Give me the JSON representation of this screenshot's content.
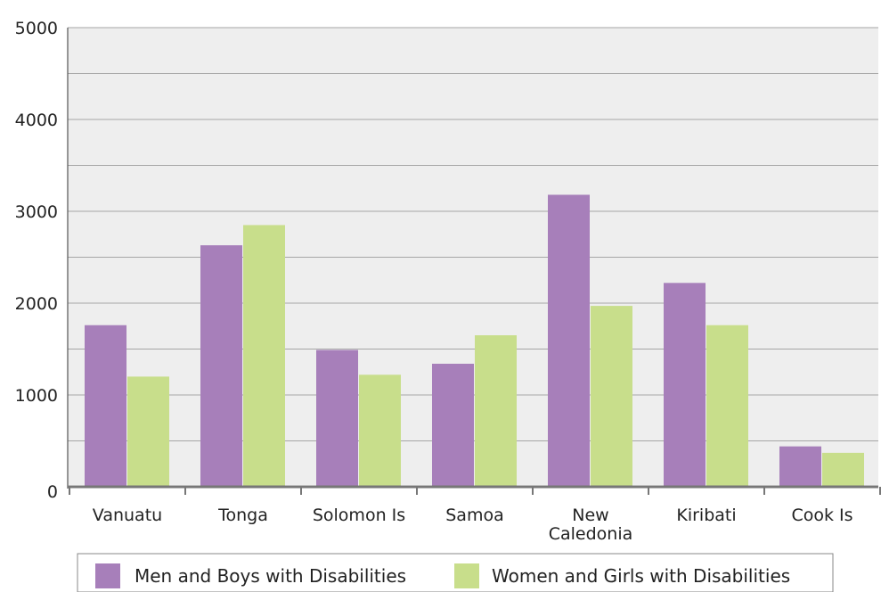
{
  "chart_data": {
    "type": "bar",
    "categories": [
      "Vanuatu",
      "Tonga",
      "Solomon Is",
      "Samoa",
      "New Caledonia",
      "Kiribati",
      "Cook Is"
    ],
    "category_lines": [
      [
        "Vanuatu"
      ],
      [
        "Tonga"
      ],
      [
        "Solomon Is"
      ],
      [
        "Samoa"
      ],
      [
        "New",
        "Caledonia"
      ],
      [
        "Kiribati"
      ],
      [
        "Cook Is"
      ]
    ],
    "series": [
      {
        "name": "Men and Boys with Disabilities",
        "color": "#a77fba",
        "values": [
          1760,
          2630,
          1490,
          1340,
          3180,
          2220,
          440
        ]
      },
      {
        "name": "Women and Girls with Disabilities",
        "color": "#c8de8b",
        "values": [
          1200,
          2850,
          1220,
          1650,
          1970,
          1760,
          370
        ]
      }
    ],
    "ylim": [
      0,
      5000
    ],
    "y_ticks": [
      "0",
      "1000",
      "2000",
      "3000",
      "4000",
      "5000"
    ],
    "grid": true,
    "legend_position": "bottom",
    "plot_background": "#eeeeee",
    "grid_color": "#a6a6a6"
  }
}
